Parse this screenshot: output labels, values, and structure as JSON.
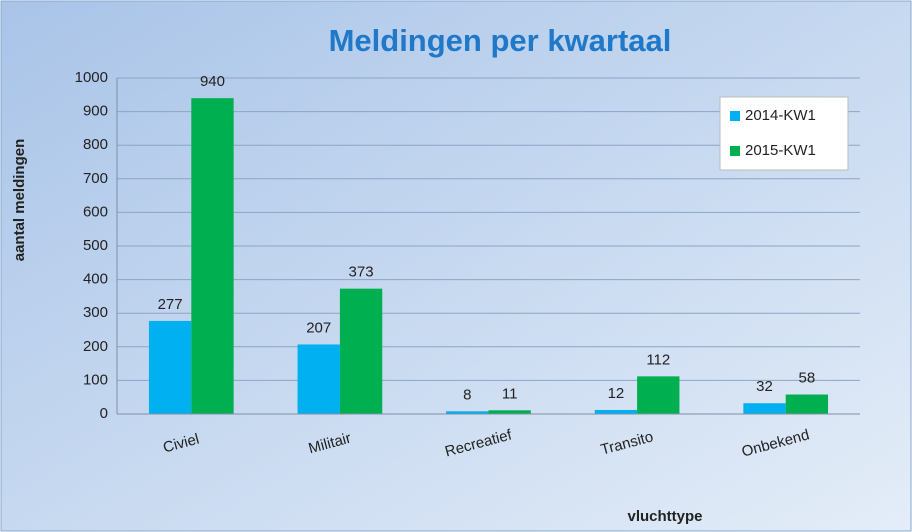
{
  "chart_data": {
    "type": "bar",
    "title": "Meldingen per kwartaal",
    "x_label": "vluchttype",
    "y_label": "aantal meldingen",
    "categories": [
      "Civiel",
      "Militair",
      "Recreatief",
      "Transito",
      "Onbekend"
    ],
    "series": [
      {
        "name": "2014-KW1",
        "color": "#00b0f0",
        "values": [
          277,
          207,
          8,
          12,
          32
        ]
      },
      {
        "name": "2015-KW1",
        "color": "#00b050",
        "values": [
          940,
          373,
          11,
          112,
          58
        ]
      }
    ],
    "ylim": [
      0,
      1000
    ],
    "yticks": [
      0,
      100,
      200,
      300,
      400,
      500,
      600,
      700,
      800,
      900,
      1000
    ],
    "grid": true,
    "legend": "top-right"
  }
}
